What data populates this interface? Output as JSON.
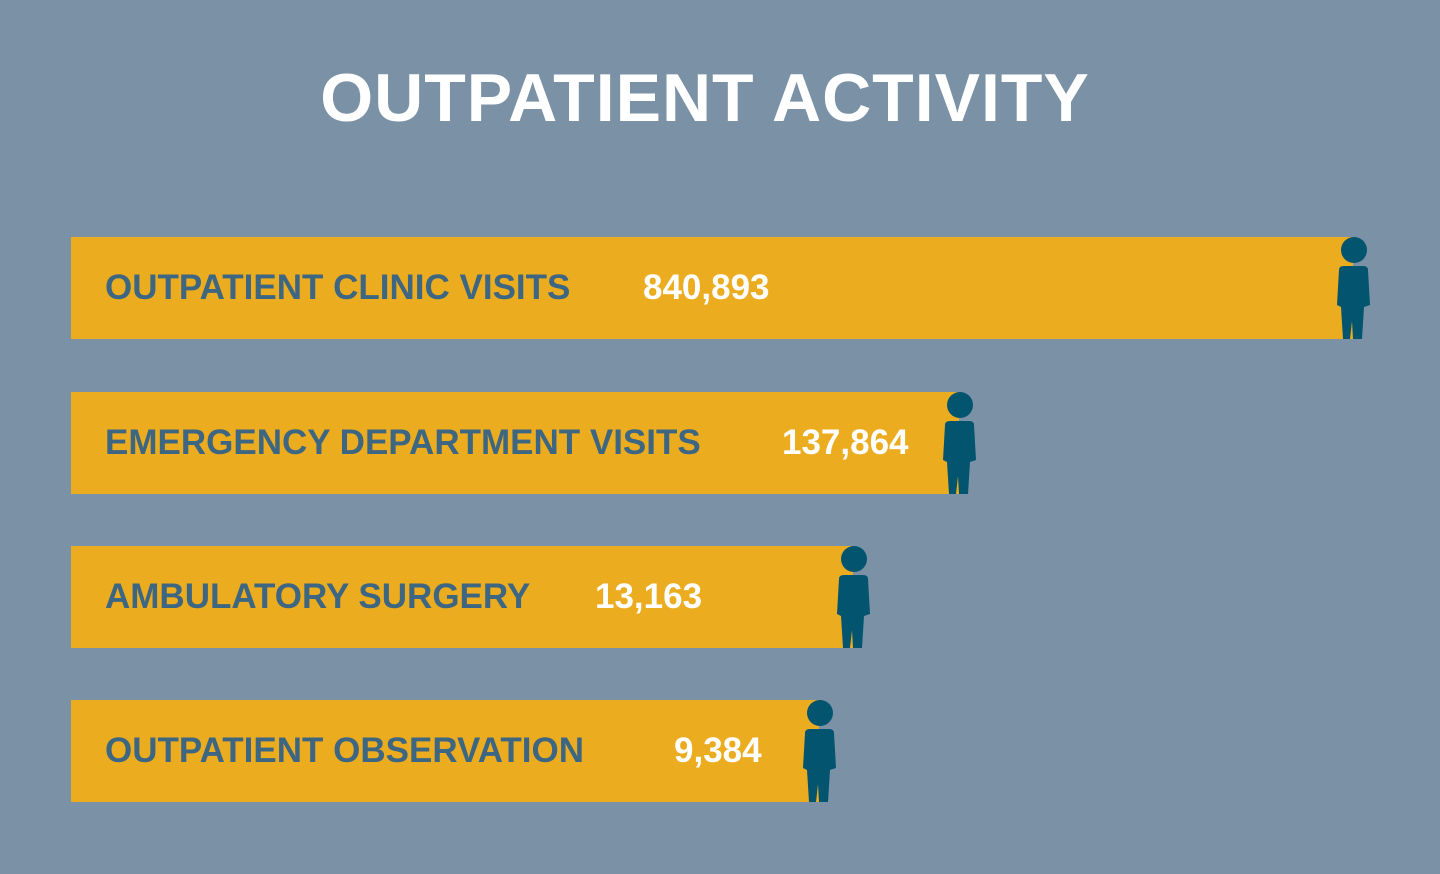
{
  "title": "OUTPATIENT ACTIVITY",
  "colors": {
    "background": "#7b91a6",
    "bar": "#ebac1f",
    "label": "#3d6683",
    "value": "#ffffff",
    "icon": "#03546f"
  },
  "icon": "person-icon",
  "chart_data": {
    "type": "bar",
    "orientation": "horizontal",
    "title": "OUTPATIENT ACTIVITY",
    "categories": [
      "OUTPATIENT CLINIC VISITS",
      "EMERGENCY DEPARTMENT VISITS",
      "AMBULATORY SURGERY",
      "OUTPATIENT OBSERVATION"
    ],
    "values": [
      840893,
      137864,
      13163,
      9384
    ],
    "value_labels": [
      "840,893",
      "137,864",
      "13,163",
      "9,384"
    ],
    "grid": false,
    "legend": "none"
  }
}
